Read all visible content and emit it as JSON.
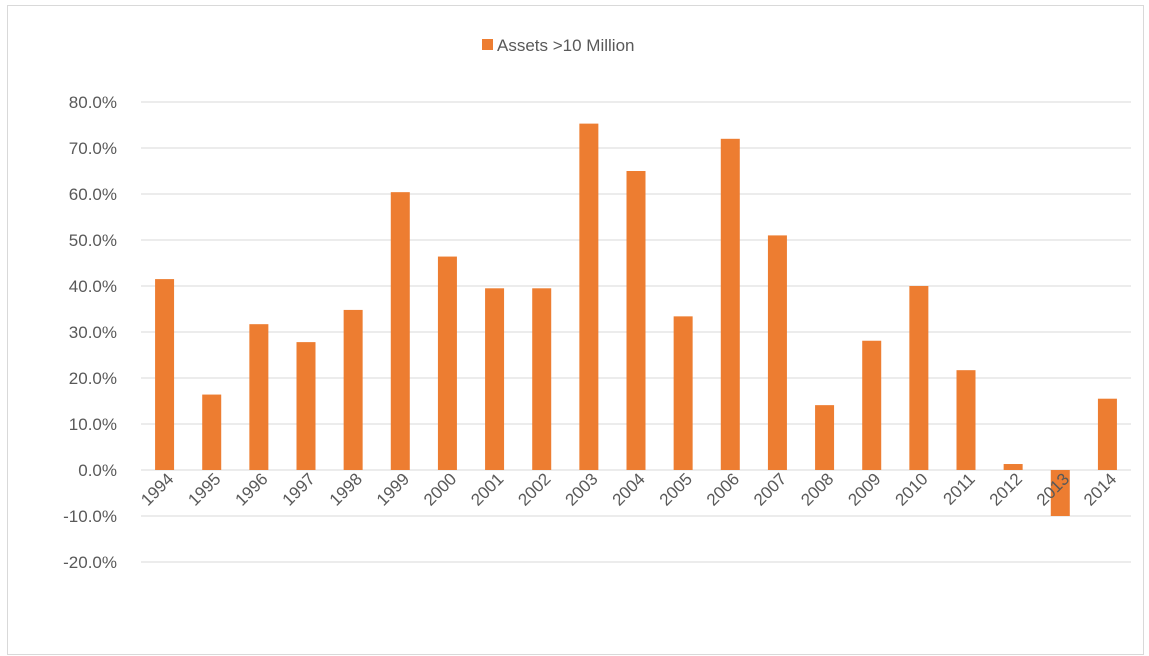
{
  "chart_data": {
    "type": "bar",
    "categories": [
      "1994",
      "1995",
      "1996",
      "1997",
      "1998",
      "1999",
      "2000",
      "2001",
      "2002",
      "2003",
      "2004",
      "2005",
      "2006",
      "2007",
      "2008",
      "2009",
      "2010",
      "2011",
      "2012",
      "2013",
      "2014"
    ],
    "series": [
      {
        "name": "Assets >10 Million",
        "values": [
          41.5,
          16.4,
          31.7,
          27.8,
          34.8,
          60.4,
          46.4,
          39.5,
          39.5,
          75.3,
          65.0,
          33.4,
          72.0,
          51.0,
          14.1,
          28.1,
          40.0,
          21.7,
          1.3,
          -10.0,
          15.5
        ],
        "color": "#ED7D31"
      }
    ],
    "y_ticks": [
      "80.0%",
      "70.0%",
      "60.0%",
      "50.0%",
      "40.0%",
      "30.0%",
      "20.0%",
      "10.0%",
      "0.0%",
      "-10.0%",
      "-20.0%"
    ],
    "ylim": [
      -20,
      80
    ],
    "y_unit": "percent",
    "grid": true,
    "legend_position": "top",
    "title": "",
    "xlabel": "",
    "ylabel": ""
  }
}
